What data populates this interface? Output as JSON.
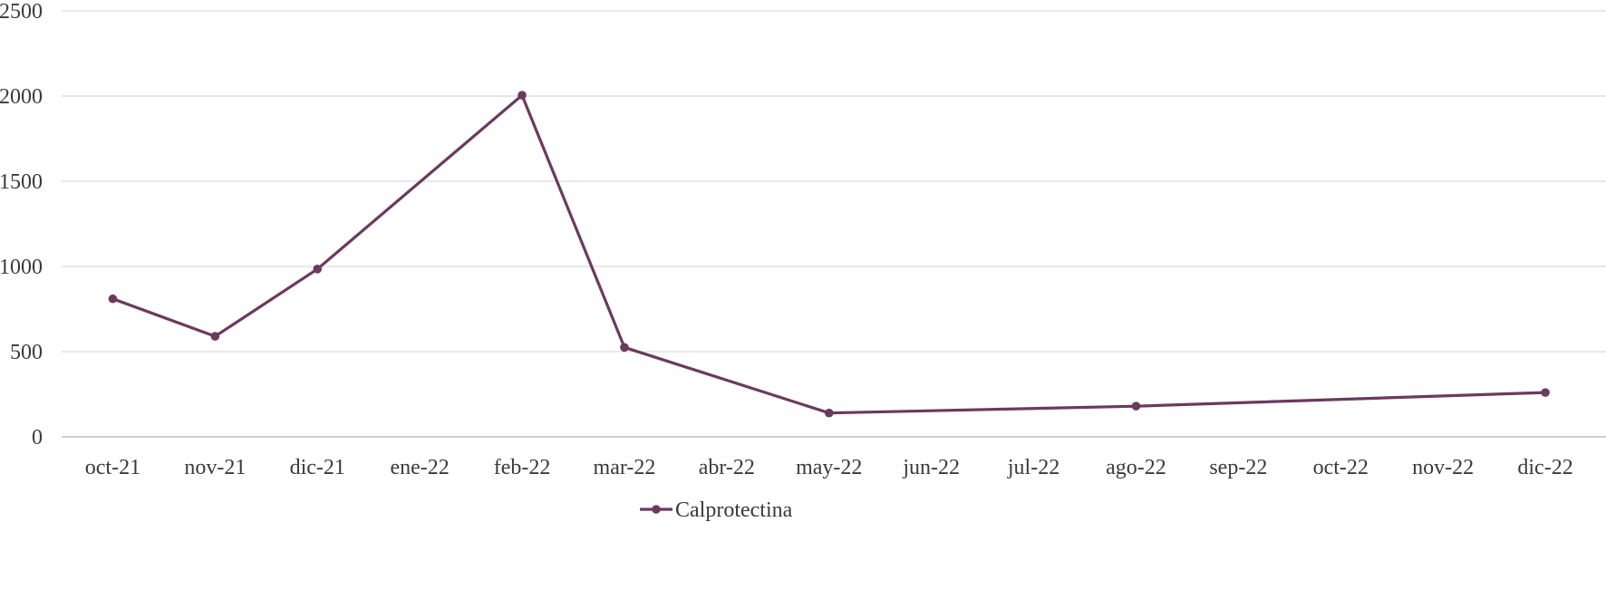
{
  "chart_data": {
    "type": "line",
    "title": "",
    "xlabel": "",
    "ylabel": "",
    "categories": [
      "oct-21",
      "nov-21",
      "dic-21",
      "ene-22",
      "feb-22",
      "mar-22",
      "abr-22",
      "may-22",
      "jun-22",
      "jul-22",
      "ago-22",
      "sep-22",
      "oct-22",
      "nov-22",
      "dic-22"
    ],
    "ylim": [
      0,
      2500
    ],
    "yticks": [
      0,
      500,
      1000,
      1500,
      2000,
      2500
    ],
    "grid": true,
    "legend_position": "bottom-center",
    "series": [
      {
        "name": "Calprotectina",
        "color": "#6b3a5e",
        "values": [
          810,
          590,
          985,
          null,
          2005,
          525,
          null,
          140,
          null,
          null,
          180,
          null,
          null,
          null,
          260
        ]
      }
    ]
  }
}
